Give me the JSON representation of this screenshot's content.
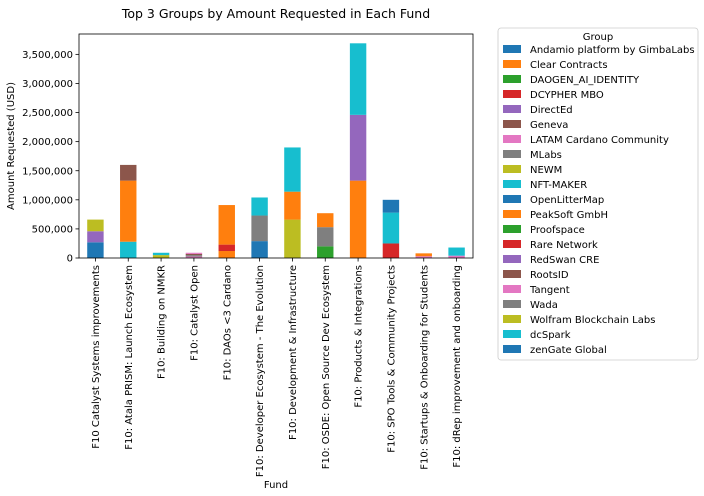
{
  "chart_data": {
    "type": "bar",
    "stacked": true,
    "title": "Top 3 Groups by Amount Requested in Each Fund",
    "xlabel": "Fund",
    "ylabel": "Amount Requested (USD)",
    "ylim": [
      0,
      3850000
    ],
    "yticks": [
      0,
      500000,
      1000000,
      1500000,
      2000000,
      2500000,
      3000000,
      3500000
    ],
    "ytick_labels": [
      "0",
      "500,000",
      "1,000,000",
      "1,500,000",
      "2,000,000",
      "2,500,000",
      "3,000,000",
      "3,500,000"
    ],
    "grid": false,
    "legend_position": "outside right",
    "legend_title": "Group",
    "categories": [
      "F10 Catalyst Systems improvements",
      "F10: Atala PRISM: Launch Ecosystem",
      "F10: Building on NMKR",
      "F10: Catalyst Open",
      "F10: DAOs <3 Cardano",
      "F10: Developer Ecosystem - The Evolution",
      "F10: Development & Infrastructure",
      "F10: OSDE: Open Source Dev Ecosystem",
      "F10: Products & Integrations",
      "F10: SPO Tools & Community Projects",
      "F10: Startups & Onboarding for Students",
      "F10: dRep improvement and onboarding"
    ],
    "series": [
      {
        "name": "Andamio platform by GimbaLabs",
        "color": "#1f77b4",
        "values": [
          270000,
          0,
          0,
          0,
          0,
          0,
          0,
          0,
          0,
          0,
          0,
          0
        ]
      },
      {
        "name": "Clear Contracts",
        "color": "#ff7f0e",
        "values": [
          0,
          0,
          0,
          0,
          120000,
          0,
          0,
          0,
          0,
          0,
          0,
          0
        ]
      },
      {
        "name": "DAOGEN_AI_IDENTITY",
        "color": "#2ca02c",
        "values": [
          0,
          0,
          0,
          0,
          0,
          0,
          0,
          0,
          0,
          0,
          0,
          0
        ]
      },
      {
        "name": "DCYPHER MBO",
        "color": "#d62728",
        "values": [
          0,
          0,
          0,
          0,
          110000,
          0,
          0,
          0,
          0,
          0,
          0,
          0
        ]
      },
      {
        "name": "DirectEd",
        "color": "#9467bd",
        "values": [
          0,
          0,
          0,
          0,
          0,
          0,
          0,
          0,
          0,
          0,
          0,
          0
        ]
      },
      {
        "name": "Geneva",
        "color": "#8c564b",
        "values": [
          0,
          0,
          0,
          0,
          0,
          0,
          0,
          0,
          0,
          0,
          0,
          0
        ]
      },
      {
        "name": "LATAM Cardano Community",
        "color": "#e377c2",
        "values": [
          0,
          0,
          0,
          25000,
          0,
          0,
          0,
          0,
          0,
          0,
          0,
          0
        ]
      },
      {
        "name": "MLabs",
        "color": "#7f7f7f",
        "values": [
          0,
          0,
          0,
          25000,
          0,
          0,
          0,
          330000,
          0,
          0,
          0,
          0
        ]
      },
      {
        "name": "NEWM",
        "color": "#bcbd22",
        "values": [
          0,
          0,
          50000,
          0,
          0,
          0,
          0,
          0,
          0,
          0,
          0,
          0
        ]
      },
      {
        "name": "NFT-MAKER",
        "color": "#17becf",
        "values": [
          0,
          0,
          40000,
          0,
          0,
          0,
          0,
          0,
          0,
          0,
          0,
          0
        ]
      },
      {
        "name": "OpenLitterMap",
        "color": "#1f77b4",
        "values": [
          0,
          0,
          0,
          0,
          0,
          0,
          0,
          0,
          0,
          220000,
          0,
          0
        ]
      },
      {
        "name": "PeakSoft GmbH",
        "color": "#ff7f0e",
        "values": [
          0,
          1050000,
          0,
          0,
          680000,
          0,
          480000,
          240000,
          1330000,
          0,
          50000,
          0
        ]
      },
      {
        "name": "Proofspace",
        "color": "#2ca02c",
        "values": [
          0,
          0,
          0,
          0,
          0,
          0,
          0,
          200000,
          0,
          0,
          0,
          0
        ]
      },
      {
        "name": "Rare Network",
        "color": "#d62728",
        "values": [
          0,
          0,
          0,
          0,
          0,
          0,
          0,
          0,
          0,
          250000,
          0,
          0
        ]
      },
      {
        "name": "RedSwan CRE",
        "color": "#9467bd",
        "values": [
          190000,
          0,
          0,
          0,
          0,
          0,
          0,
          0,
          1130000,
          0,
          0,
          0
        ]
      },
      {
        "name": "RootsID",
        "color": "#8c564b",
        "values": [
          0,
          270000,
          0,
          20000,
          0,
          0,
          0,
          0,
          0,
          0,
          0,
          0
        ]
      },
      {
        "name": "Tangent",
        "color": "#e377c2",
        "values": [
          0,
          0,
          0,
          20000,
          0,
          0,
          0,
          0,
          0,
          0,
          30000,
          40000
        ]
      },
      {
        "name": "Wada",
        "color": "#7f7f7f",
        "values": [
          0,
          0,
          0,
          0,
          0,
          440000,
          0,
          0,
          0,
          0,
          0,
          0
        ]
      },
      {
        "name": "Wolfram Blockchain Labs",
        "color": "#bcbd22",
        "values": [
          200000,
          0,
          0,
          0,
          0,
          0,
          660000,
          0,
          0,
          0,
          0,
          0
        ]
      },
      {
        "name": "dcSpark",
        "color": "#17becf",
        "values": [
          0,
          280000,
          0,
          0,
          0,
          310000,
          760000,
          0,
          1230000,
          530000,
          0,
          140000
        ]
      },
      {
        "name": "zenGate Global",
        "color": "#1f77b4",
        "values": [
          0,
          0,
          0,
          0,
          0,
          290000,
          0,
          0,
          0,
          0,
          0,
          0
        ]
      }
    ],
    "stack_orders": [
      [
        "Andamio platform by GimbaLabs",
        "RedSwan CRE",
        "Wolfram Blockchain Labs"
      ],
      [
        "dcSpark",
        "PeakSoft GmbH",
        "RootsID"
      ],
      [
        "NEWM",
        "NFT-MAKER"
      ],
      [
        "LATAM Cardano Community",
        "MLabs",
        "RootsID",
        "Tangent"
      ],
      [
        "Clear Contracts",
        "DCYPHER MBO",
        "PeakSoft GmbH"
      ],
      [
        "zenGate Global",
        "Wada",
        "dcSpark"
      ],
      [
        "Wolfram Blockchain Labs",
        "PeakSoft GmbH",
        "dcSpark"
      ],
      [
        "Proofspace",
        "MLabs",
        "PeakSoft GmbH"
      ],
      [
        "PeakSoft GmbH",
        "RedSwan CRE",
        "dcSpark"
      ],
      [
        "Rare Network",
        "dcSpark",
        "OpenLitterMap"
      ],
      [
        "Tangent",
        "PeakSoft GmbH"
      ],
      [
        "Tangent",
        "dcSpark"
      ]
    ]
  }
}
